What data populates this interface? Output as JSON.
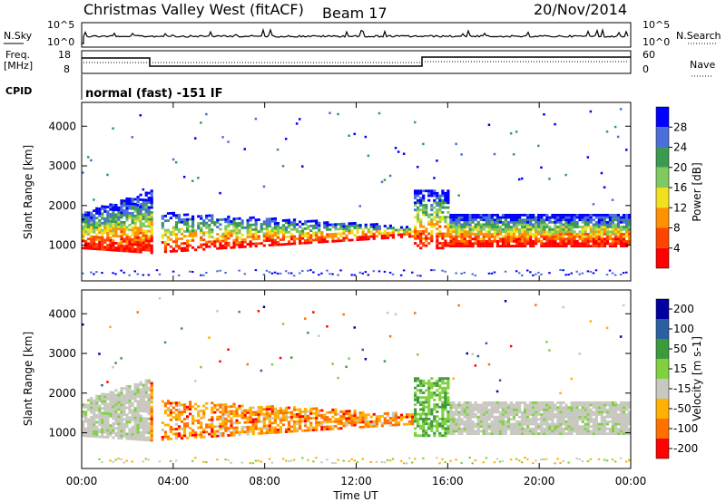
{
  "header": {
    "station": "Christmas Valley West (fitACF)",
    "beam": "Beam 17",
    "date": "20/Nov/2014"
  },
  "strip_panels": {
    "nsky": {
      "label": "N.Sky",
      "ticks": [
        "10^5",
        "10^0"
      ]
    },
    "nsearch": {
      "label": "N.Search",
      "ticks": [
        "10^5",
        "10^0"
      ]
    },
    "freq": {
      "label_line1": "Freq.",
      "label_line2": "[MHz]",
      "ticks": [
        "18",
        "8"
      ]
    },
    "nave": {
      "label": "Nave",
      "ticks": [
        "60",
        "0"
      ]
    },
    "cpid": {
      "label": "CPID",
      "text": "normal (fast) -151 IF"
    }
  },
  "colors": {
    "power": [
      "#0000ff",
      "#4a6fd8",
      "#3a9a50",
      "#80c860",
      "#f0e020",
      "#ff9000",
      "#ff4400",
      "#ff0000"
    ],
    "velocity": [
      "#0000a0",
      "#2a60a0",
      "#3c9a3c",
      "#80d040",
      "#c8c8c0",
      "#ffb000",
      "#ff7000",
      "#ff0000"
    ]
  },
  "chart_data": [
    {
      "type": "heatmap",
      "title": "",
      "ylabel": "Slant Range [km]",
      "xlabel": "",
      "ylim": [
        100,
        4600
      ],
      "yticks": [
        1000,
        2000,
        3000,
        4000
      ],
      "xticks": [
        "00:00",
        "04:00",
        "08:00",
        "12:00",
        "16:00",
        "20:00",
        "00:00"
      ],
      "colorbar": {
        "label": "Power [dB]",
        "ticks": [
          "4",
          "8",
          "12",
          "16",
          "20",
          "24",
          "28"
        ]
      }
    },
    {
      "type": "heatmap",
      "title": "",
      "ylabel": "Slant Range [km]",
      "xlabel": "Time UT",
      "ylim": [
        100,
        4600
      ],
      "yticks": [
        1000,
        2000,
        3000,
        4000
      ],
      "xticks": [
        "00:00",
        "04:00",
        "08:00",
        "12:00",
        "16:00",
        "20:00",
        "00:00"
      ],
      "colorbar": {
        "label": "Velocity [m s-1]",
        "ticks": [
          "200",
          "100",
          "50",
          "15",
          "-15",
          "-50",
          "-100",
          "-200"
        ]
      }
    }
  ]
}
